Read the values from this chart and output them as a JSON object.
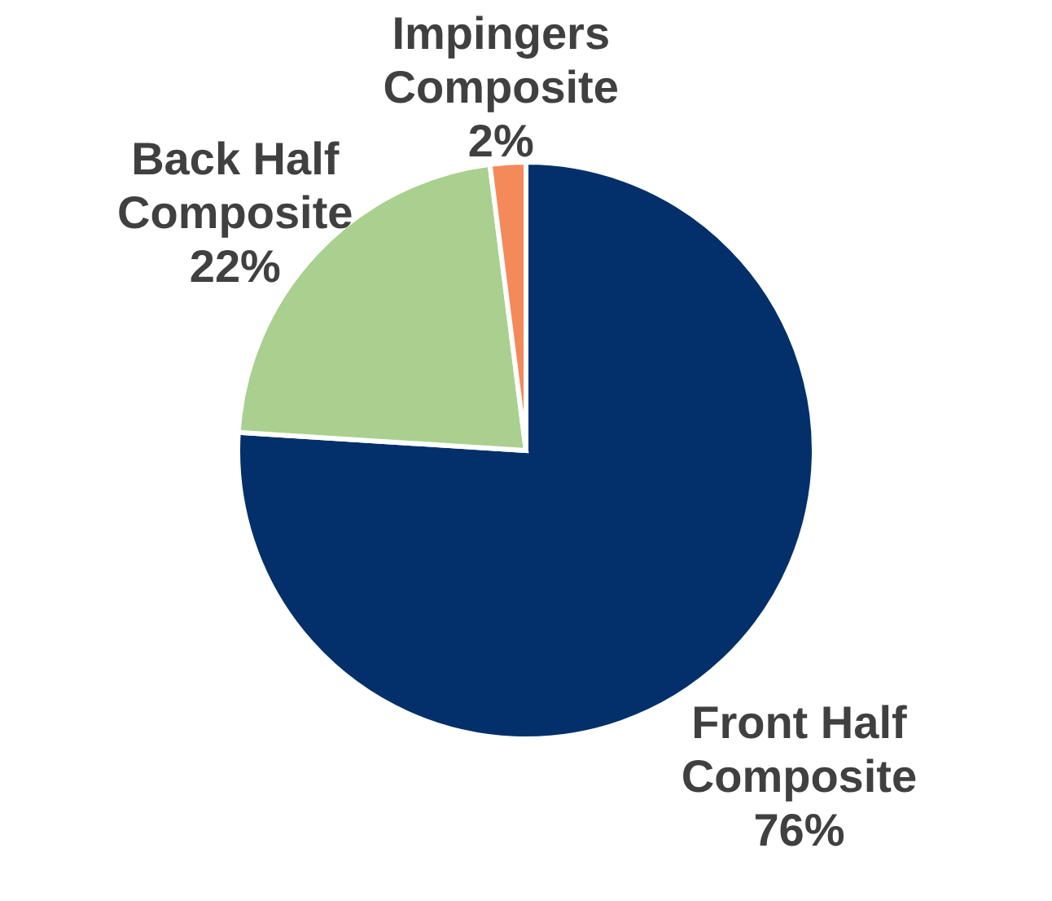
{
  "chart_data": {
    "type": "pie",
    "categories": [
      "Front Half Composite",
      "Back Half Composite",
      "Impingers Composite"
    ],
    "values": [
      76,
      22,
      2
    ],
    "colors": [
      "#03306a",
      "#a9d08e",
      "#f4895a"
    ],
    "value_labels": [
      "76%",
      "22%",
      "2%"
    ]
  }
}
